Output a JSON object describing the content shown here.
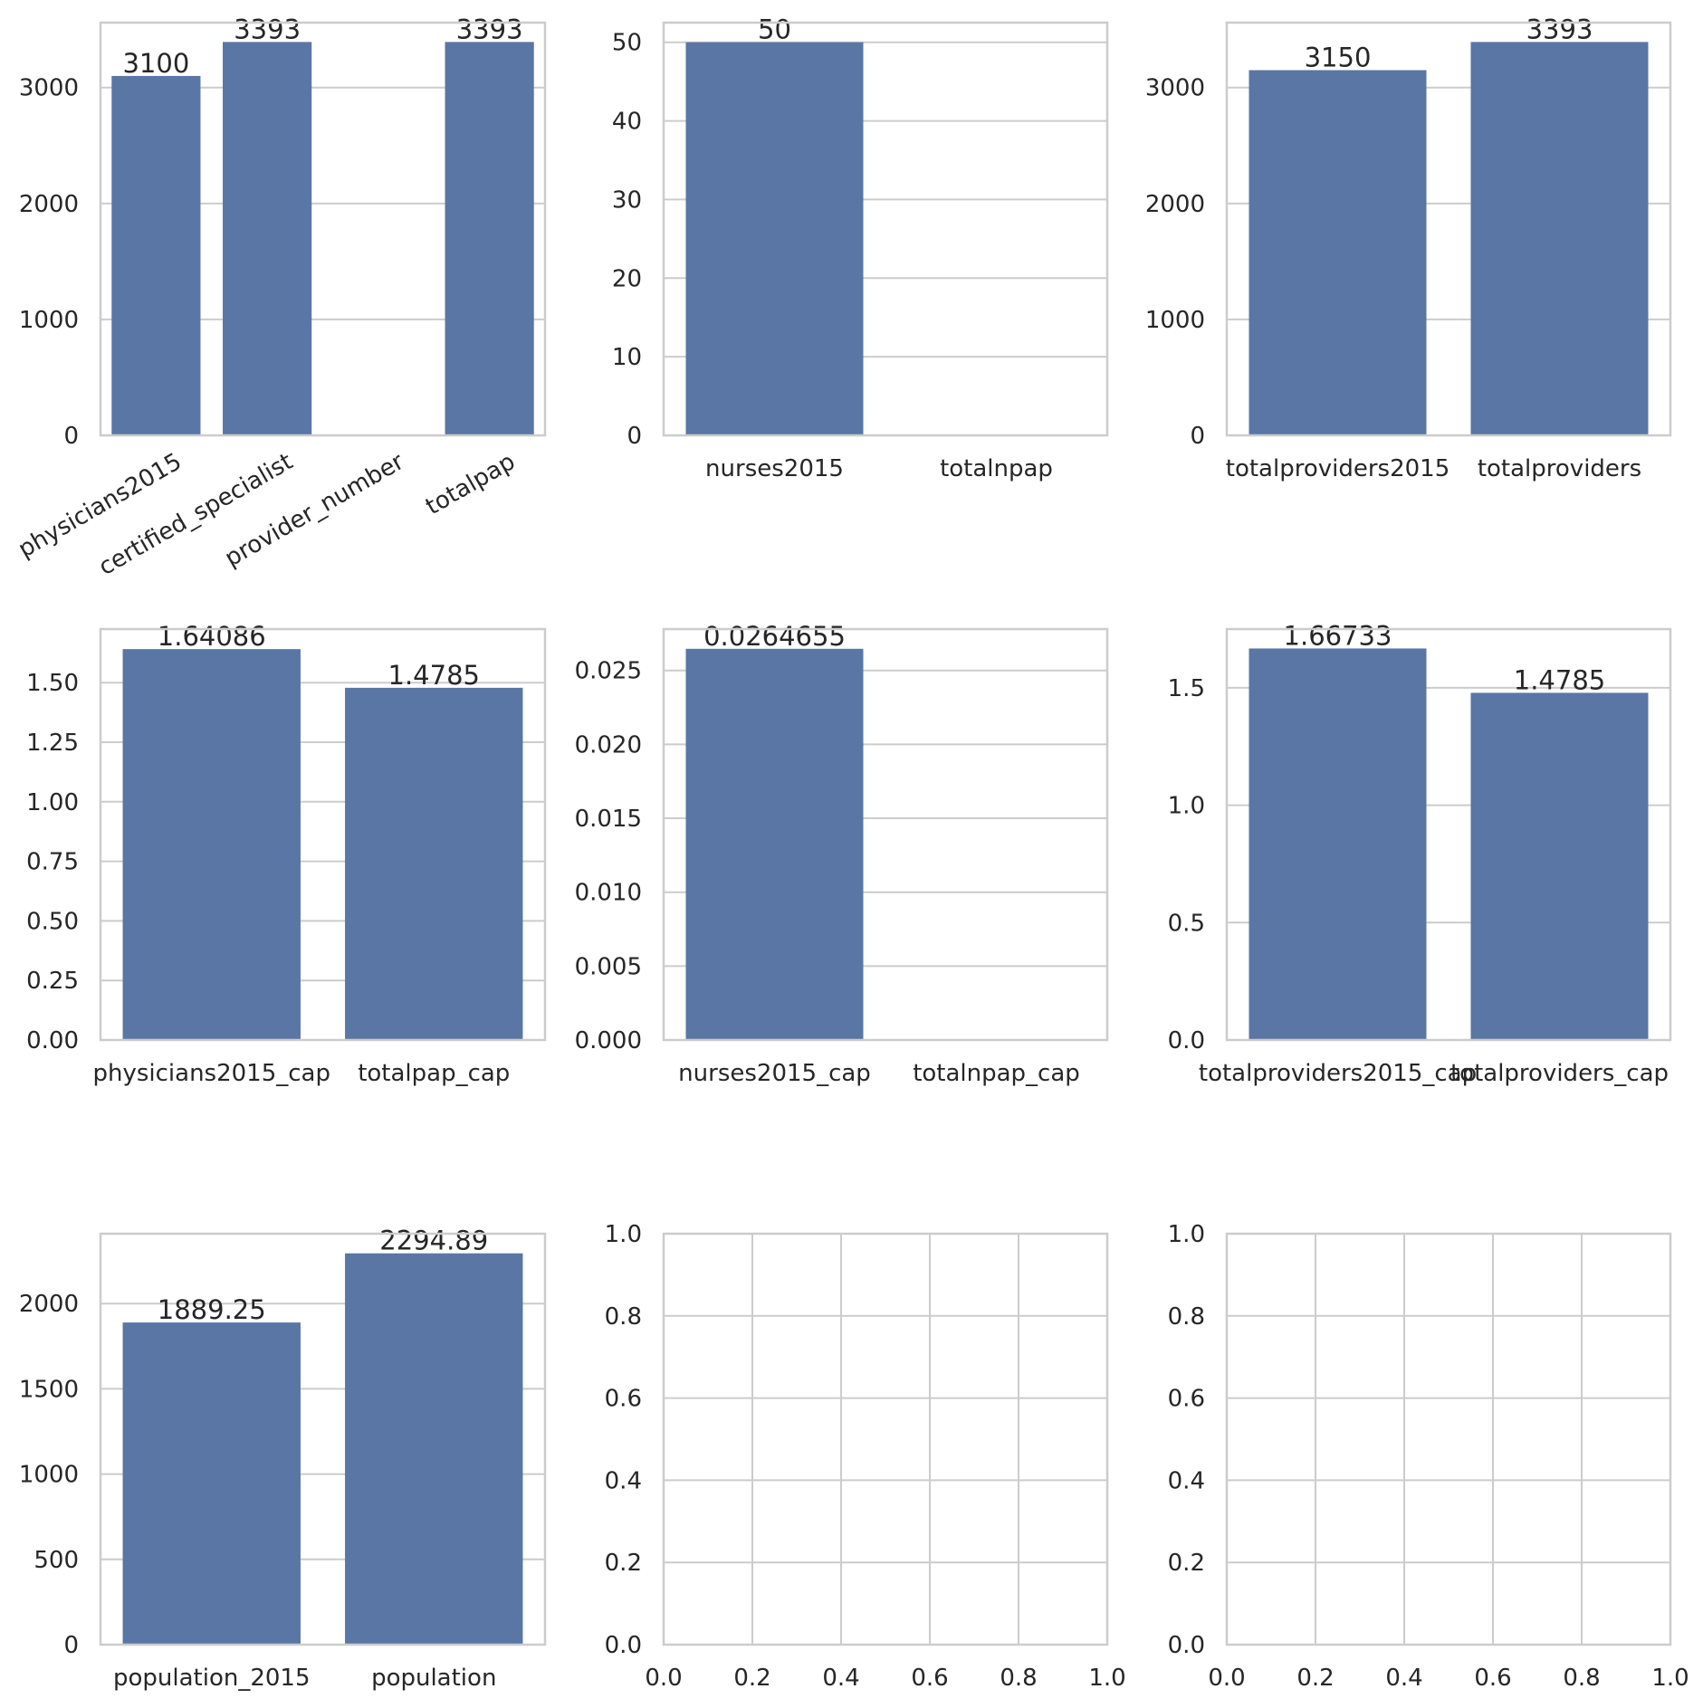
{
  "colors": {
    "bar": "#5a76a4",
    "grid": "#cccccc",
    "frame": "#cccccc",
    "text": "#262626",
    "background": "#ffffff"
  },
  "chart_data": [
    {
      "type": "bar",
      "categories": [
        "physicians2015",
        "certified_specialist",
        "provider_number",
        "totalpap"
      ],
      "values": [
        3100,
        3393,
        0,
        3393
      ],
      "labels": [
        "3100",
        "3393",
        "",
        "3393"
      ],
      "yticks": [
        "0",
        "1000",
        "2000",
        "3000"
      ],
      "ylim": [
        0,
        3560
      ],
      "xtick_rotation": 30,
      "grid": "horizontal"
    },
    {
      "type": "bar",
      "categories": [
        "nurses2015",
        "totalnpap"
      ],
      "values": [
        50,
        0
      ],
      "labels": [
        "50",
        ""
      ],
      "yticks": [
        "0",
        "10",
        "20",
        "30",
        "40",
        "50"
      ],
      "ylim": [
        0,
        52.5
      ],
      "grid": "horizontal"
    },
    {
      "type": "bar",
      "categories": [
        "totalproviders2015",
        "totalproviders"
      ],
      "values": [
        3150,
        3393
      ],
      "labels": [
        "3150",
        "3393"
      ],
      "yticks": [
        "0",
        "1000",
        "2000",
        "3000"
      ],
      "ylim": [
        0,
        3560
      ],
      "grid": "horizontal"
    },
    {
      "type": "bar",
      "categories": [
        "physicians2015_cap",
        "totalpap_cap"
      ],
      "values": [
        1.64086,
        1.4785
      ],
      "labels": [
        "1.64086",
        "1.4785"
      ],
      "yticks": [
        "0.00",
        "0.25",
        "0.50",
        "0.75",
        "1.00",
        "1.25",
        "1.50"
      ],
      "ylim": [
        0,
        1.725
      ],
      "grid": "horizontal"
    },
    {
      "type": "bar",
      "categories": [
        "nurses2015_cap",
        "totalnpap_cap"
      ],
      "values": [
        0.0264655,
        0
      ],
      "labels": [
        "0.0264655",
        ""
      ],
      "yticks": [
        "0.000",
        "0.005",
        "0.010",
        "0.015",
        "0.020",
        "0.025"
      ],
      "ylim": [
        0,
        0.0278
      ],
      "grid": "horizontal"
    },
    {
      "type": "bar",
      "categories": [
        "totalproviders2015_cap",
        "totalproviders_cap"
      ],
      "values": [
        1.66733,
        1.4785
      ],
      "labels": [
        "1.66733",
        "1.4785"
      ],
      "yticks": [
        "0.0",
        "0.5",
        "1.0",
        "1.5"
      ],
      "ylim": [
        0,
        1.75
      ],
      "grid": "horizontal"
    },
    {
      "type": "bar",
      "categories": [
        "population_2015",
        "population"
      ],
      "values": [
        1889.25,
        2294.89
      ],
      "labels": [
        "1889.25",
        "2294.89"
      ],
      "yticks": [
        "0",
        "500",
        "1000",
        "1500",
        "2000"
      ],
      "ylim": [
        0,
        2410
      ],
      "grid": "horizontal"
    },
    {
      "type": "empty",
      "xticks": [
        "0.0",
        "0.2",
        "0.4",
        "0.6",
        "0.8",
        "1.0"
      ],
      "yticks": [
        "0.0",
        "0.2",
        "0.4",
        "0.6",
        "0.8",
        "1.0"
      ],
      "xlim": [
        0,
        1
      ],
      "ylim": [
        0,
        1
      ],
      "grid": "both"
    },
    {
      "type": "empty",
      "xticks": [
        "0.0",
        "0.2",
        "0.4",
        "0.6",
        "0.8",
        "1.0"
      ],
      "yticks": [
        "0.0",
        "0.2",
        "0.4",
        "0.6",
        "0.8",
        "1.0"
      ],
      "xlim": [
        0,
        1
      ],
      "ylim": [
        0,
        1
      ],
      "grid": "both"
    }
  ]
}
